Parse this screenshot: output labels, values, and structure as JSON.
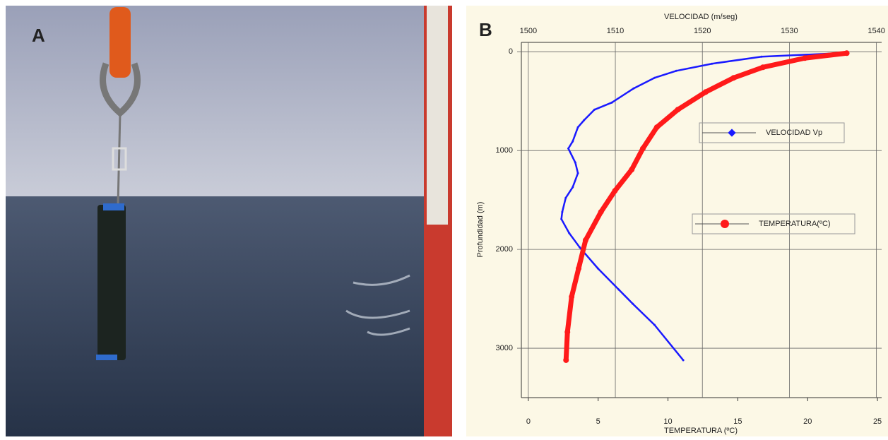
{
  "panel_a": {
    "label": "A"
  },
  "chart_data": {
    "type": "profile",
    "panel_label": "B",
    "x2_title": "VELOCIDAD (m/seg)",
    "x_title": "TEMPERATURA (ºC)",
    "y_title": "Profundidad (m)",
    "x2lim": [
      1499.2,
      1540.6
    ],
    "x2ticks": [
      1500,
      1510,
      1520,
      1530,
      1540
    ],
    "xlim": [
      -0.5,
      25.3
    ],
    "xticks": [
      0,
      5,
      10,
      15,
      20,
      25
    ],
    "ylim": [
      3500,
      -95
    ],
    "yticks": [
      0,
      1000,
      2000,
      3000
    ],
    "grid": true,
    "series": [
      {
        "name": "VELOCIDAD Vp",
        "color": "#1a1aff",
        "axis": "x2",
        "x": [
          1535.8,
          1526.8,
          1521.1,
          1517,
          1514.5,
          1512.1,
          1509.6,
          1507.6,
          1506.4,
          1505.7,
          1505.1,
          1504.6,
          1505.4,
          1505.7,
          1505.1,
          1504.3,
          1503.9,
          1503.8,
          1504.7,
          1505.9,
          1508,
          1510.4,
          1512,
          1514.5,
          1517.8
        ],
        "values": [
          14,
          50,
          121,
          193,
          264,
          371,
          514,
          586,
          693,
          764,
          907,
          979,
          1121,
          1229,
          1371,
          1479,
          1621,
          1693,
          1836,
          1979,
          2193,
          2407,
          2550,
          2764,
          3121
        ]
      },
      {
        "name": "TEMPERATURA(ºC)",
        "color": "#ff1a1a",
        "axis": "x",
        "x": [
          22.8,
          19.8,
          16.8,
          14.7,
          12.7,
          10.7,
          9.2,
          8.2,
          7.4,
          6.2,
          5.2,
          4.1,
          3.6,
          3.1,
          2.8,
          2.7
        ],
        "values": [
          14,
          64,
          157,
          264,
          407,
          586,
          764,
          979,
          1193,
          1407,
          1621,
          1907,
          2193,
          2479,
          2836,
          3121
        ]
      }
    ]
  }
}
